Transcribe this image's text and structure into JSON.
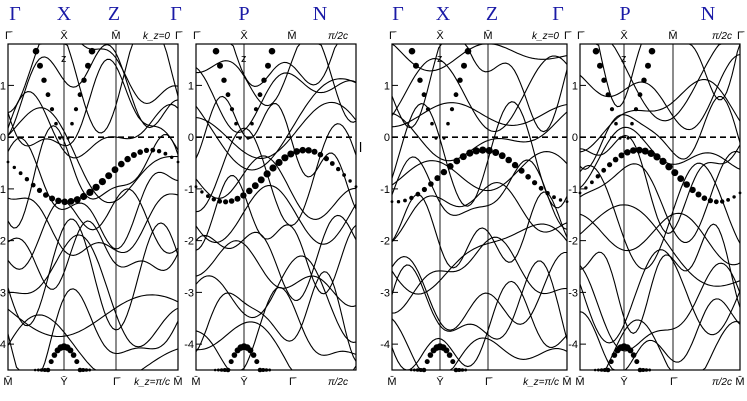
{
  "figure": {
    "header_labels": [
      "Γ",
      "X",
      "Z",
      "Γ",
      "P",
      "N",
      "Γ",
      "X",
      "Z",
      "Γ",
      "P",
      "N"
    ],
    "left_stray_label": "l",
    "colors": {
      "header": "#1a1aa6",
      "bands": "#000000",
      "fermi": "#000000"
    }
  },
  "chart_data": [
    {
      "type": "line",
      "panel": "left-a",
      "top_k_labels": [
        "Γ̄",
        "X̄",
        "M̄",
        "Γ̄"
      ],
      "bottom_k_labels": [
        "M̄",
        "Ȳ",
        "Γ̄",
        "M̄"
      ],
      "inner_label_top": "z",
      "plane_label_top": "k_z=0",
      "plane_label_bottom": "k_z=π/c",
      "ylim": [
        -4.5,
        1.8
      ],
      "yticks": [
        1,
        0,
        -1,
        -2,
        -3,
        -4
      ],
      "fermi_level": 0,
      "grid": false
    },
    {
      "type": "line",
      "panel": "left-b",
      "top_k_labels": [
        "Γ̄",
        "X̄",
        "M̄"
      ],
      "bottom_k_labels": [
        "M̄",
        "Ȳ",
        "Γ̄"
      ],
      "inner_label_top": "z",
      "plane_label_top": "π/2c",
      "plane_label_bottom": "π/2c",
      "ylim": [
        -4.5,
        1.8
      ],
      "yticks": [
        1,
        0,
        -1,
        -2,
        -3,
        -4
      ],
      "fermi_level": 0,
      "grid": false
    },
    {
      "type": "line",
      "panel": "right-a",
      "top_k_labels": [
        "Γ̄",
        "X̄",
        "M̄",
        "Γ̄"
      ],
      "bottom_k_labels": [
        "M̄",
        "Ȳ",
        "Γ̄",
        "M̄"
      ],
      "inner_label_top": "z",
      "plane_label_top": "k_z=0",
      "plane_label_bottom": "k_z=π/c",
      "ylim": [
        -4.5,
        1.8
      ],
      "yticks": [
        1,
        0,
        -1,
        -2,
        -3,
        -4
      ],
      "fermi_level": 0,
      "grid": false
    },
    {
      "type": "line",
      "panel": "right-b",
      "top_k_labels": [
        "Γ̄",
        "X̄",
        "M̄",
        "Γ̄"
      ],
      "bottom_k_labels": [
        "M̄",
        "Ȳ",
        "Γ̄",
        "M̄"
      ],
      "inner_label_top": "z",
      "plane_label_top": "π/2c",
      "plane_label_bottom": "π/2c",
      "ylim": [
        -4.5,
        1.8
      ],
      "yticks": [
        1,
        0,
        -1,
        -2,
        -3,
        -4
      ],
      "fermi_level": 0,
      "grid": false
    }
  ]
}
